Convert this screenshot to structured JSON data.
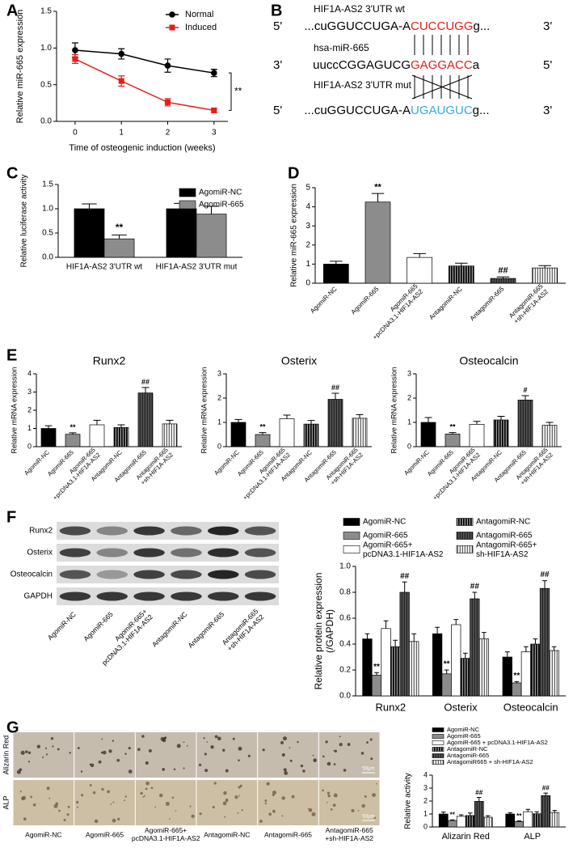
{
  "chart_data": [
    {
      "type": "line",
      "panel": "A",
      "x": [
        0,
        1,
        2,
        3
      ],
      "xlim": [
        -0.4,
        3.3
      ],
      "xticks": [
        0,
        1,
        2,
        3
      ],
      "ylim": [
        0,
        1.5
      ],
      "yticks": [
        {
          "value": 0,
          "label": "0.0"
        },
        0.5,
        {
          "value": 1,
          "label": "1.0"
        },
        1.5
      ],
      "xlabel": "Time of osteogenic induction (weeks)",
      "ylabel": "Relative miR-665 expression",
      "series": [
        {
          "name": "Normal",
          "color": "#000000",
          "marker": "circle",
          "values": [
            0.97,
            0.92,
            0.76,
            0.66
          ],
          "errors": [
            0.1,
            0.07,
            0.09,
            0.05
          ]
        },
        {
          "name": "Induced",
          "color": "#e0201b",
          "marker": "square",
          "values": [
            0.85,
            0.55,
            0.26,
            0.15
          ],
          "errors": [
            0.06,
            0.07,
            0.05,
            0.03
          ]
        }
      ],
      "annotation": "**"
    },
    {
      "type": "bar",
      "panel": "C",
      "categories": [
        "HIF1A-AS2 3'UTR wt",
        "HIF1A-AS2 3'UTR mut"
      ],
      "ylim": [
        0,
        1.5
      ],
      "yticks": [
        {
          "value": 0,
          "label": "0.0"
        },
        0.5,
        {
          "value": 1,
          "label": "1.0"
        },
        1.5
      ],
      "ylabel": "Relative luciferase activity",
      "series": [
        {
          "name": "AgomiR-NC",
          "color": "#000000",
          "values": [
            1.0,
            1.0
          ],
          "errors": [
            0.1,
            0.11
          ]
        },
        {
          "name": "AgomiR-665",
          "color": "#8c8c8c",
          "values": [
            0.38,
            0.89
          ],
          "errors": [
            0.08,
            0.16
          ],
          "significance": [
            "**",
            null
          ]
        }
      ]
    },
    {
      "type": "bar",
      "panel": "D",
      "categories": [
        "AgomiR-NC",
        "AgomiR-665",
        [
          "AgomiR-665",
          "+pcDNA3.1-HIF1A-AS2"
        ],
        "AntagomiR-NC",
        "AntagomiR-665",
        [
          "AntagomiR-665",
          "+sh-HIF1A-AS2"
        ]
      ],
      "values": [
        1.0,
        4.25,
        1.35,
        0.9,
        0.25,
        0.8
      ],
      "errors": [
        0.15,
        0.45,
        0.2,
        0.15,
        0.08,
        0.12
      ],
      "significance": [
        null,
        "**",
        null,
        null,
        "##",
        null
      ],
      "colors": [
        "#000000",
        "#8c8c8c",
        "#ffffff",
        "#000000",
        "#555555",
        "#ffffff"
      ],
      "hatched": [
        false,
        false,
        false,
        true,
        true,
        true
      ],
      "ylim": [
        0,
        5
      ],
      "yticks": [
        0,
        1,
        2,
        3,
        4,
        5
      ],
      "ylabel": "Relative miR-665 expression"
    },
    {
      "type": "bar",
      "panel": "E",
      "title": "Runx2",
      "categories": [
        "AgomiR-NC",
        "AgomiR-665",
        [
          "AgomiR-665",
          "+pcDNA3.1-HIF1A-AS2"
        ],
        "AntagomiR-NC",
        "AntagomiR-665",
        [
          "AntagomiR-665",
          "+sh-HIF1A-AS2"
        ]
      ],
      "values": [
        1.0,
        0.68,
        1.2,
        1.05,
        2.95,
        1.25
      ],
      "errors": [
        0.15,
        0.08,
        0.25,
        0.15,
        0.3,
        0.2
      ],
      "significance": [
        null,
        "**",
        null,
        null,
        "##",
        null
      ],
      "colors": [
        "#000000",
        "#8c8c8c",
        "#ffffff",
        "#000000",
        "#555555",
        "#ffffff"
      ],
      "hatched": [
        false,
        false,
        false,
        true,
        true,
        true
      ],
      "ylim": [
        0,
        4
      ],
      "yticks": [
        0,
        1,
        2,
        3,
        4
      ],
      "ylabel": "Relative mRNA expression"
    },
    {
      "type": "bar",
      "title": "Osterix",
      "categories": [
        "AgomiR-NC",
        "AgomiR-665",
        [
          "AgomiR-665",
          "+pcDNA3.1-HIF1A-AS2"
        ],
        "AntagomiR-NC",
        "AntagomiR-665",
        [
          "AntagomiR-665",
          "+sh-HIF1A-AS2"
        ]
      ],
      "values": [
        1.0,
        0.5,
        1.15,
        0.93,
        1.95,
        1.17
      ],
      "errors": [
        0.12,
        0.08,
        0.15,
        0.15,
        0.25,
        0.15
      ],
      "significance": [
        null,
        "**",
        null,
        null,
        "##",
        null
      ],
      "colors": [
        "#000000",
        "#8c8c8c",
        "#ffffff",
        "#000000",
        "#555555",
        "#ffffff"
      ],
      "hatched": [
        false,
        false,
        false,
        true,
        true,
        true
      ],
      "ylim": [
        0,
        3
      ],
      "yticks": [
        0,
        1,
        2,
        3
      ],
      "ylabel": "Relative mRNA expression"
    },
    {
      "type": "bar",
      "title": "Osteocalcin",
      "categories": [
        "AgomiR-NC",
        "AgomiR-665",
        [
          "AgomiR-665",
          "+pcDNA3.1-HIF1A-AS2"
        ],
        "AntagomiR-NC",
        "AntagomiR-665",
        [
          "AntagomiR-665",
          "+sh-HIF1A-AS2"
        ]
      ],
      "values": [
        1.0,
        0.52,
        0.92,
        1.1,
        1.92,
        0.88
      ],
      "errors": [
        0.2,
        0.06,
        0.12,
        0.15,
        0.18,
        0.12
      ],
      "significance": [
        null,
        "**",
        null,
        null,
        "#",
        null
      ],
      "colors": [
        "#000000",
        "#8c8c8c",
        "#ffffff",
        "#000000",
        "#555555",
        "#ffffff"
      ],
      "hatched": [
        false,
        false,
        false,
        true,
        true,
        true
      ],
      "ylim": [
        0,
        3
      ],
      "yticks": [
        0,
        1,
        2,
        3
      ],
      "ylabel": "Relative mRNA expression"
    },
    {
      "type": "bar",
      "panel": "F",
      "categories": [
        "Runx2",
        "Osterix",
        "Osteocalcin"
      ],
      "ylim": [
        0,
        1
      ],
      "yticks": [
        {
          "value": 0,
          "label": "0.0"
        },
        0.2,
        0.4,
        0.6,
        0.8,
        {
          "value": 1,
          "label": "1.0"
        }
      ],
      "ylabel": [
        "Relative protein expression",
        "(/GAPDH)"
      ],
      "series": [
        {
          "name": "AgomiR-NC",
          "color": "#000000",
          "values": [
            0.44,
            0.48,
            0.3
          ],
          "errors": [
            0.04,
            0.05,
            0.04
          ]
        },
        {
          "name": "AgomiR-665",
          "color": "#8c8c8c",
          "values": [
            0.16,
            0.17,
            0.1
          ],
          "errors": [
            0.02,
            0.03,
            0.01
          ],
          "significance": [
            "**",
            "**",
            "**"
          ]
        },
        {
          "name": [
            "AgomiR-665+",
            "pcDNA3.1-HIF1A-AS2"
          ],
          "color": "#ffffff",
          "values": [
            0.52,
            0.55,
            0.34
          ],
          "errors": [
            0.06,
            0.04,
            0.04
          ]
        },
        {
          "name": "AntagomiR-NC",
          "color": "#000000",
          "hatched": true,
          "values": [
            0.38,
            0.29,
            0.4
          ],
          "errors": [
            0.05,
            0.04,
            0.04
          ]
        },
        {
          "name": "AntagomiR-665",
          "color": "#555555",
          "hatched": true,
          "values": [
            0.8,
            0.75,
            0.83
          ],
          "errors": [
            0.08,
            0.05,
            0.06
          ],
          "significance": [
            "##",
            "##",
            "##"
          ]
        },
        {
          "name": [
            "AntagomiR-665+",
            "sh-HIF1A-AS2"
          ],
          "color": "#ffffff",
          "hatched": true,
          "values": [
            0.42,
            0.44,
            0.35
          ],
          "errors": [
            0.06,
            0.05,
            0.03
          ]
        }
      ]
    },
    {
      "type": "bar",
      "panel": "G",
      "categories": [
        "Alizarin Red",
        "ALP"
      ],
      "ylim": [
        0,
        4
      ],
      "yticks": [
        0,
        1,
        2,
        3,
        4
      ],
      "ylabel": "Relative activity",
      "series": [
        {
          "name": "AgomiR-NC",
          "color": "#000000",
          "values": [
            1.0,
            1.0
          ],
          "errors": [
            0.15,
            0.1
          ]
        },
        {
          "name": "AgomiR-665",
          "color": "#8c8c8c",
          "values": [
            0.5,
            0.42
          ],
          "errors": [
            0.05,
            0.05
          ],
          "significance": [
            "**",
            "**"
          ]
        },
        {
          "name": "AgomiR-665 + pcDNA3.1-HIF1A-AS2",
          "color": "#ffffff",
          "values": [
            0.82,
            1.18
          ],
          "errors": [
            0.12,
            0.18
          ]
        },
        {
          "name": "AntagomiR-NC",
          "color": "#000000",
          "hatched": true,
          "values": [
            0.88,
            1.02
          ],
          "errors": [
            0.2,
            0.15
          ]
        },
        {
          "name": "AntagomiR-665",
          "color": "#555555",
          "hatched": true,
          "values": [
            1.98,
            2.42
          ],
          "errors": [
            0.3,
            0.2
          ],
          "significance": [
            "##",
            "##"
          ]
        },
        {
          "name": "AntagomiR665 + sh-HIF1A-AS2",
          "color": "#ffffff",
          "hatched": true,
          "values": [
            0.75,
            1.12
          ],
          "errors": [
            0.12,
            0.15
          ]
        }
      ]
    }
  ],
  "diagram": {
    "panel": "B",
    "labels": [
      "HIF1A-AS2 3'UTR wt",
      "hsa-miR-665",
      "HIF1A-AS2 3'UTR mut"
    ],
    "rows": [
      {
        "left": "5'",
        "seq": "...cuGGUCCUGA-A",
        "site": "CUCCUGG",
        "tail": "g...",
        "right": "3'"
      },
      {
        "left": "3'",
        "seq": "uuccCGGAGUCG",
        "site": "GAGGACC",
        "tail": "a",
        "right": "5'"
      },
      {
        "left": "5'",
        "seq": "...cuGGUCCUGA-A",
        "site": "UGAUGUC",
        "tail": "g...",
        "right": "3'"
      }
    ]
  },
  "blot": {
    "rows": [
      "Runx2",
      "Osterix",
      "Osteocalcin",
      "GAPDH"
    ],
    "columns": [
      "AgomiR-NC",
      "AgomiR-665",
      [
        "AgomiR-665+",
        "pcDNA3.1-HIF1A-AS2"
      ],
      "AntagomiR-NC",
      "AntagomiR-665",
      [
        "AntagomiR-665",
        "+sh-HIF1A-AS2"
      ]
    ]
  },
  "micrographs": {
    "rows": [
      "Alizarin Red",
      "ALP"
    ],
    "columns": [
      "AgomiR-NC",
      "AgomiR-665",
      [
        "AgomiR-665+",
        "pcDNA3.1-HIF1A-AS2"
      ],
      "AntagomiR-NC",
      "AntagomiR-665",
      [
        "AntagomiR-665",
        "+sh-HIF1A-AS2"
      ]
    ],
    "scale_bar": "50μm"
  }
}
